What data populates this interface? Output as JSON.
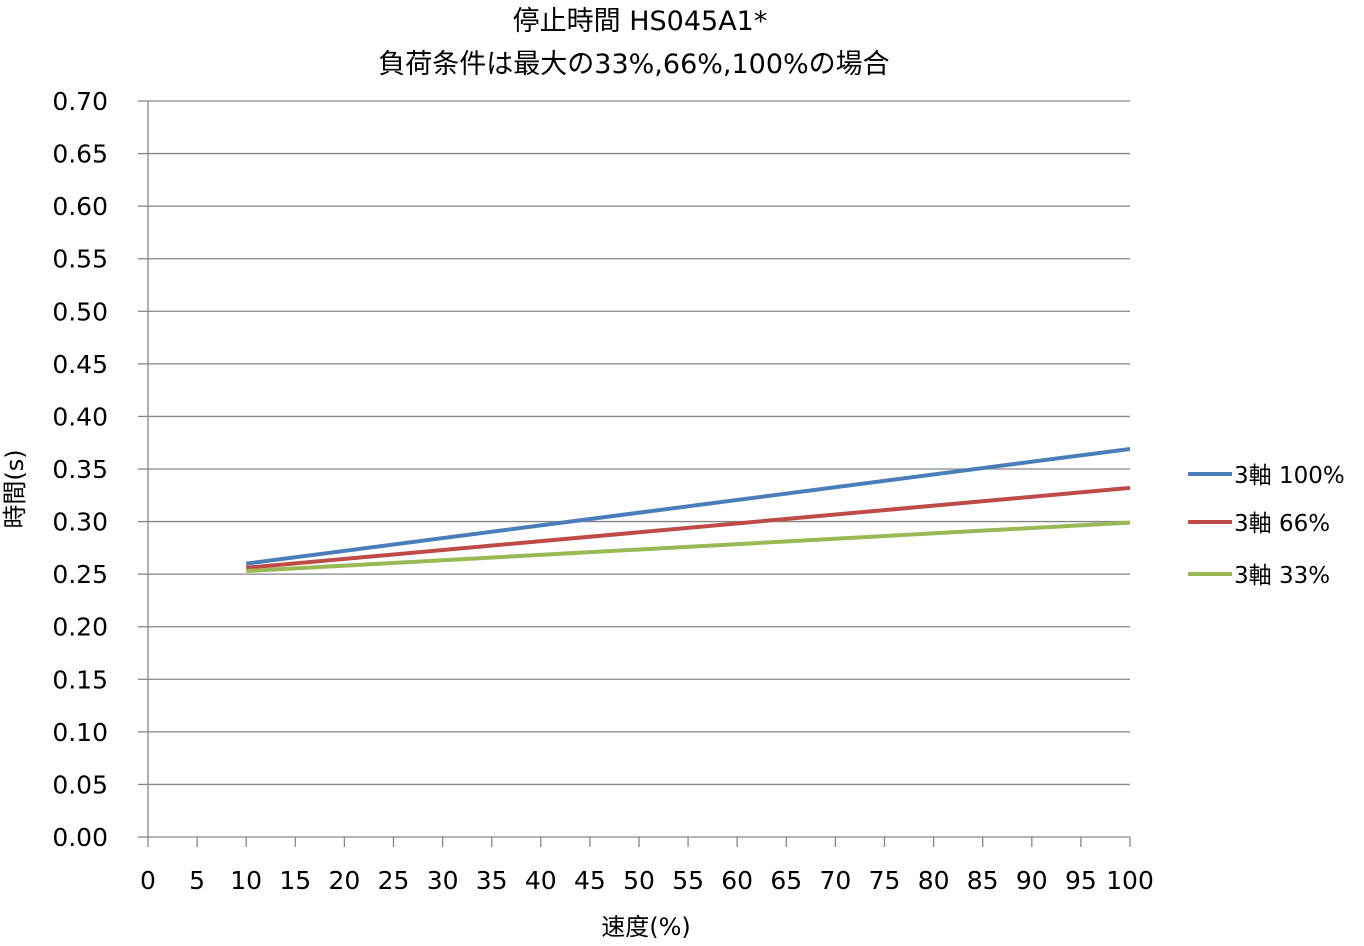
{
  "chart_data": {
    "type": "line",
    "title": "停止時間 HS045A1*",
    "subtitle": "負荷条件は最大の33%,66%,100%の場合",
    "xlabel": "速度(%)",
    "ylabel": "時間(s)",
    "xlim": [
      0,
      100
    ],
    "ylim": [
      0,
      0.7
    ],
    "x_ticks": [
      "0",
      "5",
      "10",
      "15",
      "20",
      "25",
      "30",
      "35",
      "40",
      "45",
      "50",
      "55",
      "60",
      "65",
      "70",
      "75",
      "80",
      "85",
      "90",
      "95",
      "100"
    ],
    "y_ticks": [
      "0.00",
      "0.05",
      "0.10",
      "0.15",
      "0.20",
      "0.25",
      "0.30",
      "0.35",
      "0.40",
      "0.45",
      "0.50",
      "0.55",
      "0.60",
      "0.65",
      "0.70"
    ],
    "grid": "horizontal",
    "legend_position": "right",
    "series": [
      {
        "name": "3軸  100%",
        "color": "#4a7ebb",
        "x": [
          10,
          100
        ],
        "y": [
          0.26,
          0.369
        ]
      },
      {
        "name": "3軸  66%",
        "color": "#be4b48",
        "x": [
          10,
          100
        ],
        "y": [
          0.256,
          0.332
        ]
      },
      {
        "name": "3軸  33%",
        "color": "#98b954",
        "x": [
          10,
          100
        ],
        "y": [
          0.253,
          0.299
        ]
      }
    ]
  }
}
